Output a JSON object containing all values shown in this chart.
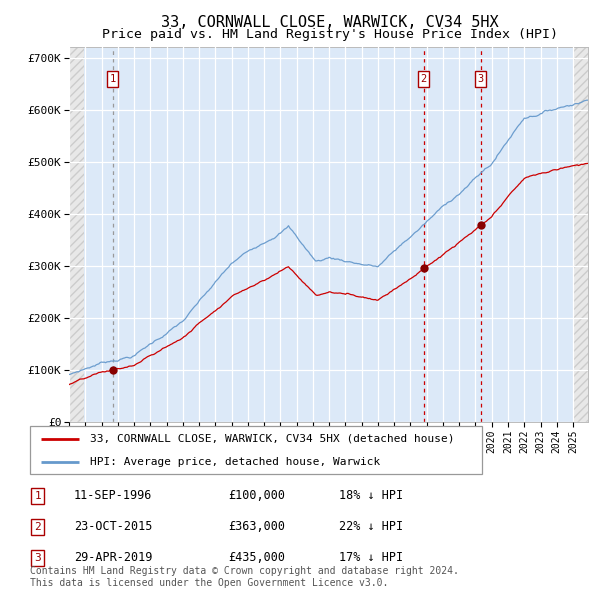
{
  "title": "33, CORNWALL CLOSE, WARWICK, CV34 5HX",
  "subtitle": "Price paid vs. HM Land Registry's House Price Index (HPI)",
  "ylim": [
    0,
    720000
  ],
  "yticks": [
    0,
    100000,
    200000,
    300000,
    400000,
    500000,
    600000,
    700000
  ],
  "ytick_labels": [
    "£0",
    "£100K",
    "£200K",
    "£300K",
    "£400K",
    "£500K",
    "£600K",
    "£700K"
  ],
  "xlim_start": 1994.0,
  "xlim_end": 2025.92,
  "plot_bg_color": "#dce9f8",
  "hpi_line_color": "#6699cc",
  "price_line_color": "#cc0000",
  "marker_color": "#880000",
  "vline_color_1": "#999999",
  "vline_color_23": "#cc0000",
  "transactions": [
    {
      "num": 1,
      "date_label": "11-SEP-1996",
      "date_x": 1996.69,
      "price": 100000,
      "hpi_pct": "18% ↓ HPI"
    },
    {
      "num": 2,
      "date_label": "23-OCT-2015",
      "date_x": 2015.81,
      "price": 363000,
      "hpi_pct": "22% ↓ HPI"
    },
    {
      "num": 3,
      "date_label": "29-APR-2019",
      "date_x": 2019.32,
      "price": 435000,
      "hpi_pct": "17% ↓ HPI"
    }
  ],
  "legend_label_red": "33, CORNWALL CLOSE, WARWICK, CV34 5HX (detached house)",
  "legend_label_blue": "HPI: Average price, detached house, Warwick",
  "footnote": "Contains HM Land Registry data © Crown copyright and database right 2024.\nThis data is licensed under the Open Government Licence v3.0.",
  "title_fontsize": 11,
  "subtitle_fontsize": 9.5,
  "tick_fontsize": 8,
  "legend_fontsize": 8,
  "table_fontsize": 8.5
}
